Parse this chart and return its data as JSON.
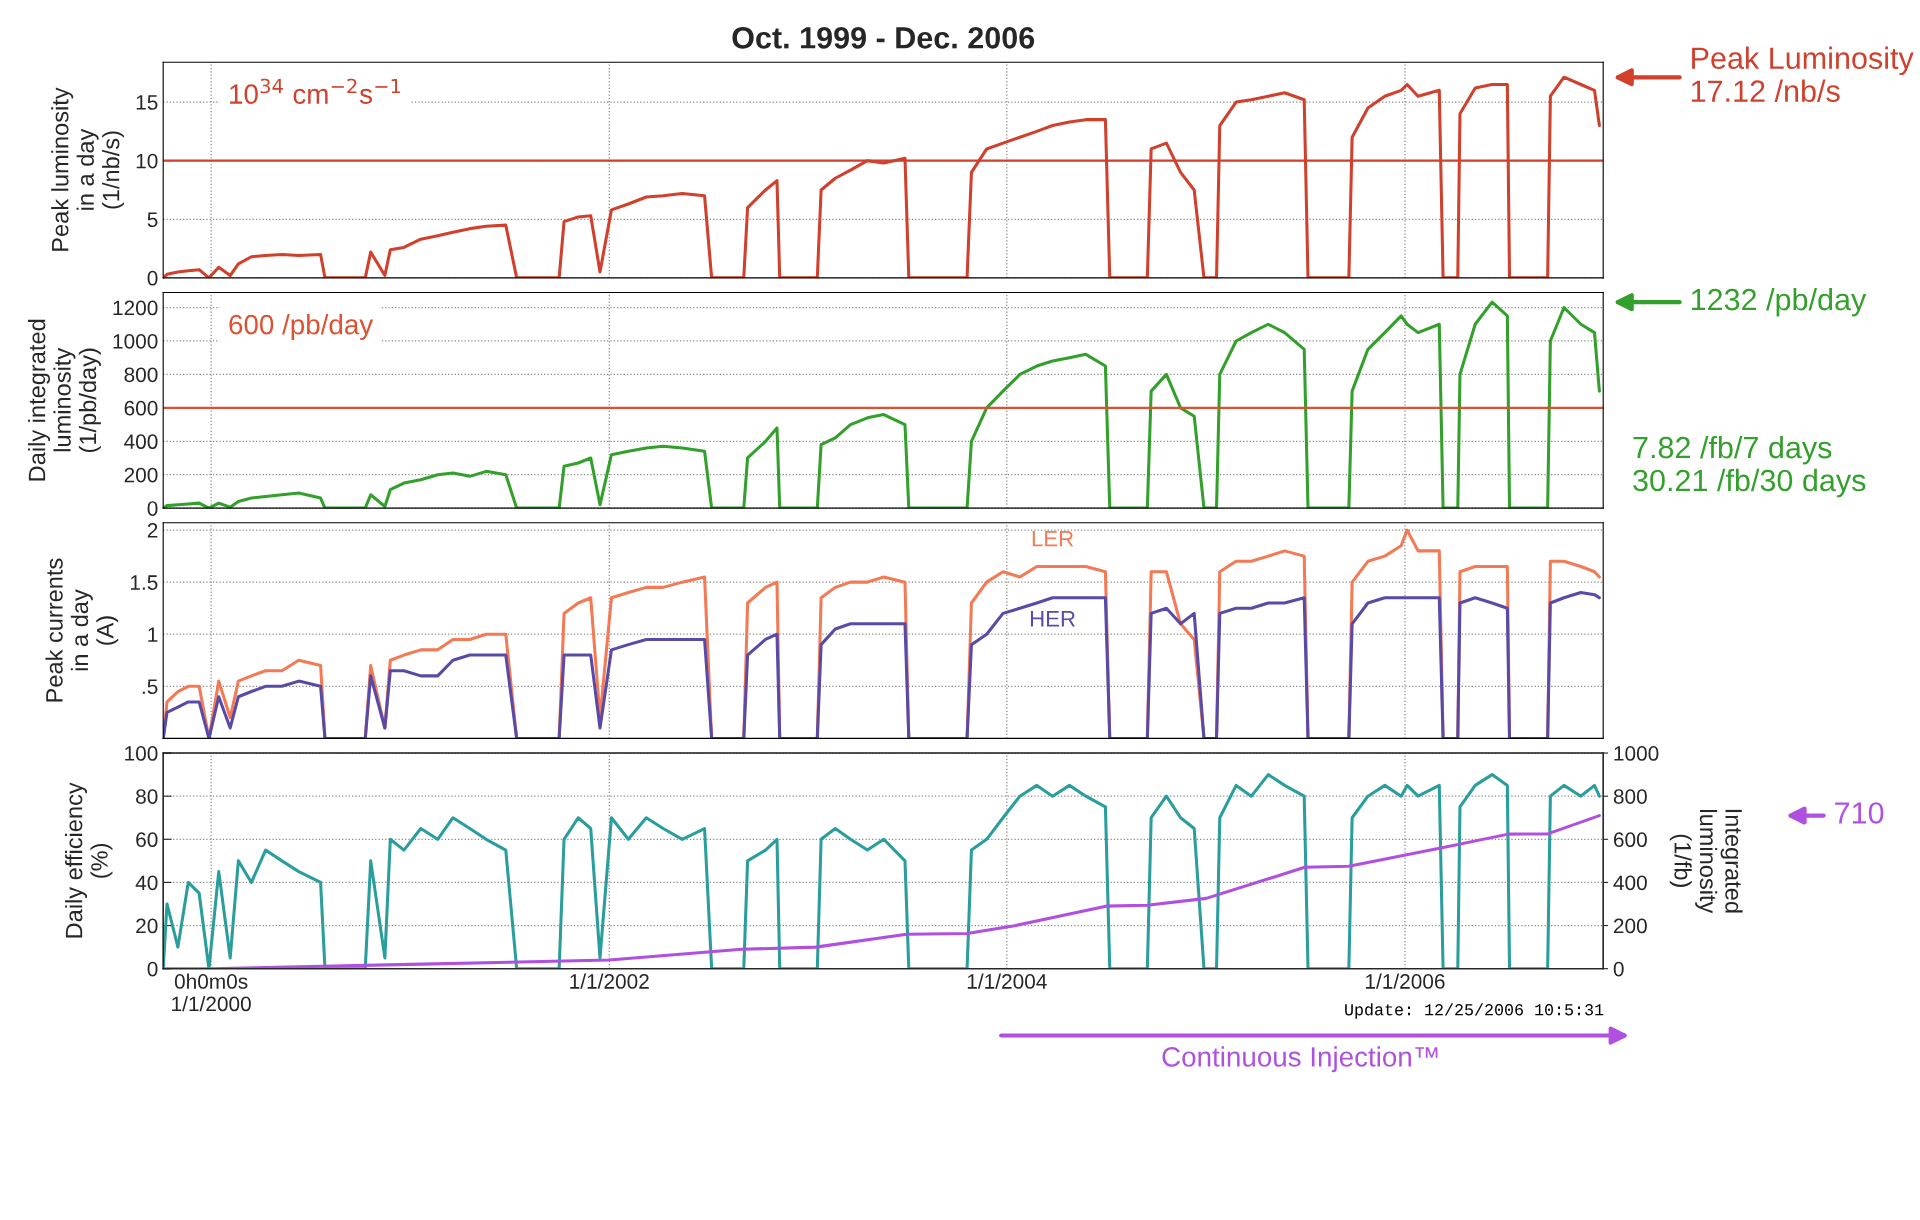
{
  "chart_data": [
    {
      "type": "line",
      "title": "Oct. 1999 - Dec. 2006",
      "ylabel": "Peak luminosity\nin a day\n(1/nb/s)",
      "tick_labels": "y",
      "grid": true,
      "xlim": [
        "1999-10-05",
        "2006-12-31"
      ],
      "ylim": [
        0,
        18.4
      ],
      "yticks": [
        0,
        5,
        10,
        15
      ],
      "x": [
        "1999-10-05",
        "1999-10-12",
        "1999-11-01",
        "1999-11-20",
        "1999-12-10",
        "1999-12-28",
        "2000-01-15",
        "2000-02-05",
        "2000-02-20",
        "2000-03-15",
        "2000-04-10",
        "2000-05-10",
        "2000-06-10",
        "2000-07-20",
        "2000-07-28",
        "2000-10-10",
        "2000-10-20",
        "2000-11-15",
        "2000-11-25",
        "2000-12-20",
        "2001-01-20",
        "2001-02-20",
        "2001-03-20",
        "2001-04-20",
        "2001-05-20",
        "2001-06-25",
        "2001-07-15",
        "2001-10-01",
        "2001-10-10",
        "2001-11-05",
        "2001-11-28",
        "2001-12-15",
        "2002-01-05",
        "2002-02-05",
        "2002-03-10",
        "2002-04-10",
        "2002-05-15",
        "2002-06-25",
        "2002-07-08",
        "2002-09-05",
        "2002-09-12",
        "2002-10-15",
        "2002-11-05",
        "2002-11-10",
        "2003-01-18",
        "2003-01-25",
        "2003-02-20",
        "2003-03-20",
        "2003-04-20",
        "2003-05-20",
        "2003-06-28",
        "2003-07-05",
        "2003-10-20",
        "2003-10-28",
        "2003-11-25",
        "2003-12-25",
        "2004-01-25",
        "2004-02-25",
        "2004-03-25",
        "2004-04-25",
        "2004-05-25",
        "2004-06-30",
        "2004-07-08",
        "2004-09-15",
        "2004-09-22",
        "2004-10-20",
        "2004-11-15",
        "2004-12-10",
        "2004-12-28",
        "2005-01-20",
        "2005-01-26",
        "2005-02-25",
        "2005-03-25",
        "2005-04-25",
        "2005-05-25",
        "2005-06-30",
        "2005-07-07",
        "2005-09-20",
        "2005-09-26",
        "2005-10-25",
        "2005-11-25",
        "2005-12-25",
        "2006-01-05",
        "2006-01-25",
        "2006-03-05",
        "2006-03-12",
        "2006-04-08",
        "2006-04-12",
        "2006-05-10",
        "2006-06-10",
        "2006-07-08",
        "2006-07-12",
        "2006-09-20",
        "2006-09-25",
        "2006-10-20",
        "2006-11-20",
        "2006-12-15",
        "2006-12-24"
      ],
      "series": [
        {
          "color": "#d0402c",
          "values": [
            0,
            0.3,
            0.5,
            0.6,
            0.7,
            0,
            0.9,
            0.2,
            1.2,
            1.8,
            1.9,
            2.0,
            1.9,
            2.0,
            0,
            0,
            2.2,
            0.2,
            2.4,
            2.6,
            3.3,
            3.6,
            3.9,
            4.2,
            4.4,
            4.5,
            0,
            0,
            4.8,
            5.2,
            5.3,
            0.5,
            5.8,
            6.3,
            6.9,
            7.0,
            7.2,
            7.0,
            0,
            0,
            6.0,
            7.5,
            8.3,
            0,
            0,
            7.5,
            8.5,
            9.2,
            10.0,
            9.8,
            10.2,
            0,
            0,
            9.0,
            11.0,
            11.5,
            12.0,
            12.5,
            13.0,
            13.3,
            13.5,
            13.5,
            0,
            0,
            11.0,
            11.5,
            9.0,
            7.5,
            0,
            0,
            13.0,
            15.0,
            15.2,
            15.5,
            15.8,
            15.2,
            0,
            0,
            12.0,
            14.5,
            15.5,
            16.0,
            16.5,
            15.5,
            16.0,
            0,
            0,
            14.0,
            16.2,
            16.5,
            16.5,
            0,
            0,
            15.5,
            17.12,
            16.5,
            16.0,
            13.0
          ]
        }
      ],
      "ref_lines": [
        {
          "axis": "y",
          "value": 10,
          "label": "10$^{34}$ cm$^{−2}$s$^{−1}$",
          "color": "#d0402c"
        }
      ],
      "annotations": [
        "Peak Luminosity\n17.12 /nb/s"
      ]
    },
    {
      "type": "line",
      "ylabel": "Daily integrated\nluminosity\n(1/pb/day)",
      "tick_labels": "y",
      "grid": true,
      "xlim": [
        "1999-10-05",
        "2006-12-31"
      ],
      "ylim": [
        0,
        1290
      ],
      "yticks": [
        0,
        200,
        400,
        600,
        800,
        1000,
        1200
      ],
      "x": [
        "1999-10-05",
        "1999-10-12",
        "1999-11-01",
        "1999-11-20",
        "1999-12-10",
        "1999-12-28",
        "2000-01-15",
        "2000-02-05",
        "2000-02-20",
        "2000-03-15",
        "2000-04-10",
        "2000-05-10",
        "2000-06-10",
        "2000-07-20",
        "2000-07-28",
        "2000-10-10",
        "2000-10-20",
        "2000-11-15",
        "2000-11-25",
        "2000-12-20",
        "2001-01-20",
        "2001-02-20",
        "2001-03-20",
        "2001-04-20",
        "2001-05-20",
        "2001-06-25",
        "2001-07-15",
        "2001-10-01",
        "2001-10-10",
        "2001-11-05",
        "2001-11-28",
        "2001-12-15",
        "2002-01-05",
        "2002-02-05",
        "2002-03-10",
        "2002-04-10",
        "2002-05-15",
        "2002-06-25",
        "2002-07-08",
        "2002-09-05",
        "2002-09-12",
        "2002-10-15",
        "2002-11-05",
        "2002-11-10",
        "2003-01-18",
        "2003-01-25",
        "2003-02-20",
        "2003-03-20",
        "2003-04-20",
        "2003-05-20",
        "2003-06-28",
        "2003-07-05",
        "2003-10-20",
        "2003-10-28",
        "2003-11-25",
        "2003-12-25",
        "2004-01-25",
        "2004-02-25",
        "2004-03-25",
        "2004-04-25",
        "2004-05-25",
        "2004-06-30",
        "2004-07-08",
        "2004-09-15",
        "2004-09-22",
        "2004-10-20",
        "2004-11-15",
        "2004-12-10",
        "2004-12-28",
        "2005-01-20",
        "2005-01-26",
        "2005-02-25",
        "2005-03-25",
        "2005-04-25",
        "2005-05-25",
        "2005-06-30",
        "2005-07-07",
        "2005-09-20",
        "2005-09-26",
        "2005-10-25",
        "2005-11-25",
        "2005-12-25",
        "2006-01-05",
        "2006-01-25",
        "2006-03-05",
        "2006-03-12",
        "2006-04-08",
        "2006-04-12",
        "2006-05-10",
        "2006-06-10",
        "2006-07-08",
        "2006-07-12",
        "2006-09-20",
        "2006-09-25",
        "2006-10-20",
        "2006-11-20",
        "2006-12-15",
        "2006-12-24"
      ],
      "series": [
        {
          "color": "#33a02c",
          "values": [
            0,
            15,
            20,
            25,
            30,
            0,
            30,
            5,
            40,
            60,
            70,
            80,
            90,
            60,
            0,
            0,
            80,
            10,
            110,
            150,
            170,
            200,
            210,
            190,
            220,
            200,
            0,
            0,
            250,
            270,
            300,
            20,
            320,
            340,
            360,
            370,
            360,
            340,
            0,
            0,
            300,
            400,
            480,
            0,
            0,
            380,
            420,
            500,
            540,
            560,
            500,
            0,
            0,
            400,
            600,
            700,
            800,
            850,
            880,
            900,
            920,
            850,
            0,
            0,
            700,
            800,
            600,
            550,
            0,
            0,
            800,
            1000,
            1050,
            1100,
            1050,
            950,
            0,
            0,
            700,
            950,
            1050,
            1150,
            1100,
            1050,
            1100,
            0,
            0,
            800,
            1100,
            1232,
            1150,
            0,
            0,
            1000,
            1200,
            1100,
            1050,
            700
          ]
        }
      ],
      "ref_lines": [
        {
          "axis": "y",
          "value": 600,
          "label": "600 /pb/day",
          "color": "#e05030"
        }
      ],
      "annotations": [
        "1232 /pb/day",
        "7.82 /fb/7 days\n30.21 /fb/30 days"
      ]
    },
    {
      "type": "line",
      "ylabel": "Peak currents\nin a day\n(A)",
      "tick_labels": "y",
      "grid": true,
      "xlim": [
        "1999-10-05",
        "2006-12-31"
      ],
      "ylim": [
        0,
        2.07
      ],
      "yticks": [
        {
          "value": 0.5,
          "label": ".5"
        },
        1,
        1.5,
        2
      ],
      "x": [
        "1999-10-05",
        "1999-10-12",
        "1999-11-01",
        "1999-11-20",
        "1999-12-10",
        "1999-12-28",
        "2000-01-15",
        "2000-02-05",
        "2000-02-20",
        "2000-03-15",
        "2000-04-10",
        "2000-05-10",
        "2000-06-10",
        "2000-07-20",
        "2000-07-28",
        "2000-10-10",
        "2000-10-20",
        "2000-11-15",
        "2000-11-25",
        "2000-12-20",
        "2001-01-20",
        "2001-02-20",
        "2001-03-20",
        "2001-04-20",
        "2001-05-20",
        "2001-06-25",
        "2001-07-15",
        "2001-10-01",
        "2001-10-10",
        "2001-11-05",
        "2001-11-28",
        "2001-12-15",
        "2002-01-05",
        "2002-02-05",
        "2002-03-10",
        "2002-04-10",
        "2002-05-15",
        "2002-06-25",
        "2002-07-08",
        "2002-09-05",
        "2002-09-12",
        "2002-10-15",
        "2002-11-05",
        "2002-11-10",
        "2003-01-18",
        "2003-01-25",
        "2003-02-20",
        "2003-03-20",
        "2003-04-20",
        "2003-05-20",
        "2003-06-28",
        "2003-07-05",
        "2003-10-20",
        "2003-10-28",
        "2003-11-25",
        "2003-12-25",
        "2004-01-25",
        "2004-02-25",
        "2004-03-25",
        "2004-04-25",
        "2004-05-25",
        "2004-06-30",
        "2004-07-08",
        "2004-09-15",
        "2004-09-22",
        "2004-10-20",
        "2004-11-15",
        "2004-12-10",
        "2004-12-28",
        "2005-01-20",
        "2005-01-26",
        "2005-02-25",
        "2005-03-25",
        "2005-04-25",
        "2005-05-25",
        "2005-06-30",
        "2005-07-07",
        "2005-09-20",
        "2005-09-26",
        "2005-10-25",
        "2005-11-25",
        "2005-12-25",
        "2006-01-05",
        "2006-01-25",
        "2006-03-05",
        "2006-03-12",
        "2006-04-08",
        "2006-04-12",
        "2006-05-10",
        "2006-06-10",
        "2006-07-08",
        "2006-07-12",
        "2006-09-20",
        "2006-09-25",
        "2006-10-20",
        "2006-11-20",
        "2006-12-15",
        "2006-12-24"
      ],
      "series": [
        {
          "name": "LER",
          "color": "#f47a55",
          "values": [
            0,
            0.35,
            0.45,
            0.5,
            0.5,
            0,
            0.55,
            0.2,
            0.55,
            0.6,
            0.65,
            0.65,
            0.75,
            0.7,
            0,
            0,
            0.7,
            0.1,
            0.75,
            0.8,
            0.85,
            0.85,
            0.95,
            0.95,
            1.0,
            1.0,
            0,
            0,
            1.2,
            1.3,
            1.35,
            0.2,
            1.35,
            1.4,
            1.45,
            1.45,
            1.5,
            1.55,
            0,
            0,
            1.3,
            1.45,
            1.5,
            0,
            0,
            1.35,
            1.45,
            1.5,
            1.5,
            1.55,
            1.5,
            0,
            0,
            1.3,
            1.5,
            1.6,
            1.55,
            1.65,
            1.65,
            1.65,
            1.65,
            1.6,
            0,
            0,
            1.6,
            1.6,
            1.1,
            0.95,
            0,
            0,
            1.6,
            1.7,
            1.7,
            1.75,
            1.8,
            1.75,
            0,
            0,
            1.5,
            1.7,
            1.75,
            1.85,
            2.0,
            1.8,
            1.8,
            0,
            0,
            1.6,
            1.65,
            1.65,
            1.65,
            0,
            0,
            1.7,
            1.7,
            1.65,
            1.6,
            1.55
          ]
        },
        {
          "name": "HER",
          "color": "#5a4aa8",
          "values": [
            0,
            0.25,
            0.3,
            0.35,
            0.35,
            0,
            0.4,
            0.1,
            0.4,
            0.45,
            0.5,
            0.5,
            0.55,
            0.5,
            0,
            0,
            0.6,
            0.1,
            0.65,
            0.65,
            0.6,
            0.6,
            0.75,
            0.8,
            0.8,
            0.8,
            0,
            0,
            0.8,
            0.8,
            0.8,
            0.1,
            0.85,
            0.9,
            0.95,
            0.95,
            0.95,
            0.95,
            0,
            0,
            0.8,
            0.95,
            1.0,
            0,
            0,
            0.9,
            1.05,
            1.1,
            1.1,
            1.1,
            1.1,
            0,
            0,
            0.9,
            1.0,
            1.2,
            1.25,
            1.3,
            1.35,
            1.35,
            1.35,
            1.35,
            0,
            0,
            1.2,
            1.25,
            1.1,
            1.2,
            0,
            0,
            1.2,
            1.25,
            1.25,
            1.3,
            1.3,
            1.35,
            0,
            0,
            1.1,
            1.3,
            1.35,
            1.35,
            1.35,
            1.35,
            1.35,
            0,
            0,
            1.3,
            1.35,
            1.3,
            1.25,
            0,
            0,
            1.3,
            1.35,
            1.4,
            1.38,
            1.35
          ]
        }
      ]
    },
    {
      "type": "line",
      "ylabel": "Daily efficiency\n(%)",
      "y2label": "Integrated\nluminosity\n(1/fb)",
      "grid": true,
      "xlim": [
        "1999-10-05",
        "2006-12-31"
      ],
      "ylim": [
        0,
        100
      ],
      "yticks": [
        0,
        20,
        40,
        60,
        80,
        100
      ],
      "y2lim": [
        0,
        1000
      ],
      "y2ticks": [
        0,
        200,
        400,
        600,
        800,
        1000
      ],
      "xticks": [
        {
          "value": "2000-01-01",
          "label": "0h0m0s\n1/1/2000"
        },
        {
          "value": "2002-01-01",
          "label": "1/1/2002"
        },
        {
          "value": "2004-01-01",
          "label": "1/1/2004"
        },
        {
          "value": "2006-01-01",
          "label": "1/1/2006"
        }
      ],
      "x": [
        "1999-10-05",
        "1999-10-12",
        "1999-11-01",
        "1999-11-20",
        "1999-12-10",
        "1999-12-28",
        "2000-01-15",
        "2000-02-05",
        "2000-02-20",
        "2000-03-15",
        "2000-04-10",
        "2000-05-10",
        "2000-06-10",
        "2000-07-20",
        "2000-07-28",
        "2000-10-10",
        "2000-10-20",
        "2000-11-15",
        "2000-11-25",
        "2000-12-20",
        "2001-01-20",
        "2001-02-20",
        "2001-03-20",
        "2001-04-20",
        "2001-05-20",
        "2001-06-25",
        "2001-07-15",
        "2001-10-01",
        "2001-10-10",
        "2001-11-05",
        "2001-11-28",
        "2001-12-15",
        "2002-01-05",
        "2002-02-05",
        "2002-03-10",
        "2002-04-10",
        "2002-05-15",
        "2002-06-25",
        "2002-07-08",
        "2002-09-05",
        "2002-09-12",
        "2002-10-15",
        "2002-11-05",
        "2002-11-10",
        "2003-01-18",
        "2003-01-25",
        "2003-02-20",
        "2003-03-20",
        "2003-04-20",
        "2003-05-20",
        "2003-06-28",
        "2003-07-05",
        "2003-10-20",
        "2003-10-28",
        "2003-11-25",
        "2003-12-25",
        "2004-01-25",
        "2004-02-25",
        "2004-03-25",
        "2004-04-25",
        "2004-05-25",
        "2004-06-30",
        "2004-07-08",
        "2004-09-15",
        "2004-09-22",
        "2004-10-20",
        "2004-11-15",
        "2004-12-10",
        "2004-12-28",
        "2005-01-20",
        "2005-01-26",
        "2005-02-25",
        "2005-03-25",
        "2005-04-25",
        "2005-05-25",
        "2005-06-30",
        "2005-07-07",
        "2005-09-20",
        "2005-09-26",
        "2005-10-25",
        "2005-11-25",
        "2005-12-25",
        "2006-01-05",
        "2006-01-25",
        "2006-03-05",
        "2006-03-12",
        "2006-04-08",
        "2006-04-12",
        "2006-05-10",
        "2006-06-10",
        "2006-07-08",
        "2006-07-12",
        "2006-09-20",
        "2006-09-25",
        "2006-10-20",
        "2006-11-20",
        "2006-12-15",
        "2006-12-24"
      ],
      "series": [
        {
          "color": "#2a9d9d",
          "values": [
            0,
            30,
            10,
            40,
            35,
            0,
            45,
            5,
            50,
            40,
            55,
            50,
            45,
            40,
            0,
            0,
            50,
            5,
            60,
            55,
            65,
            60,
            70,
            65,
            60,
            55,
            0,
            0,
            60,
            70,
            65,
            5,
            70,
            60,
            70,
            65,
            60,
            65,
            0,
            0,
            50,
            55,
            60,
            0,
            0,
            60,
            65,
            60,
            55,
            60,
            50,
            0,
            0,
            55,
            60,
            70,
            80,
            85,
            80,
            85,
            80,
            75,
            0,
            0,
            70,
            80,
            70,
            65,
            0,
            0,
            70,
            85,
            80,
            90,
            85,
            80,
            0,
            0,
            70,
            80,
            85,
            80,
            85,
            80,
            85,
            0,
            0,
            75,
            85,
            90,
            85,
            0,
            0,
            80,
            85,
            80,
            85,
            80
          ]
        },
        {
          "axis": "y2",
          "color": "#b050e0",
          "x": [
            "1999-10-05",
            "2000-01-01",
            "2001-01-01",
            "2002-01-01",
            "2002-09-01",
            "2003-01-15",
            "2003-07-01",
            "2003-10-20",
            "2004-01-15",
            "2004-07-01",
            "2004-09-15",
            "2005-01-01",
            "2005-07-01",
            "2005-09-20",
            "2006-03-10",
            "2006-07-10",
            "2006-09-20",
            "2006-12-24"
          ],
          "values": [
            0,
            0,
            20,
            40,
            90,
            100,
            160,
            163,
            199,
            290,
            294,
            326,
            470,
            475,
            561,
            624,
            625,
            710
          ]
        }
      ],
      "annotations": [
        "710",
        "Update: 12/25/2006 10:5:31",
        "Continuous Injection™"
      ]
    }
  ]
}
